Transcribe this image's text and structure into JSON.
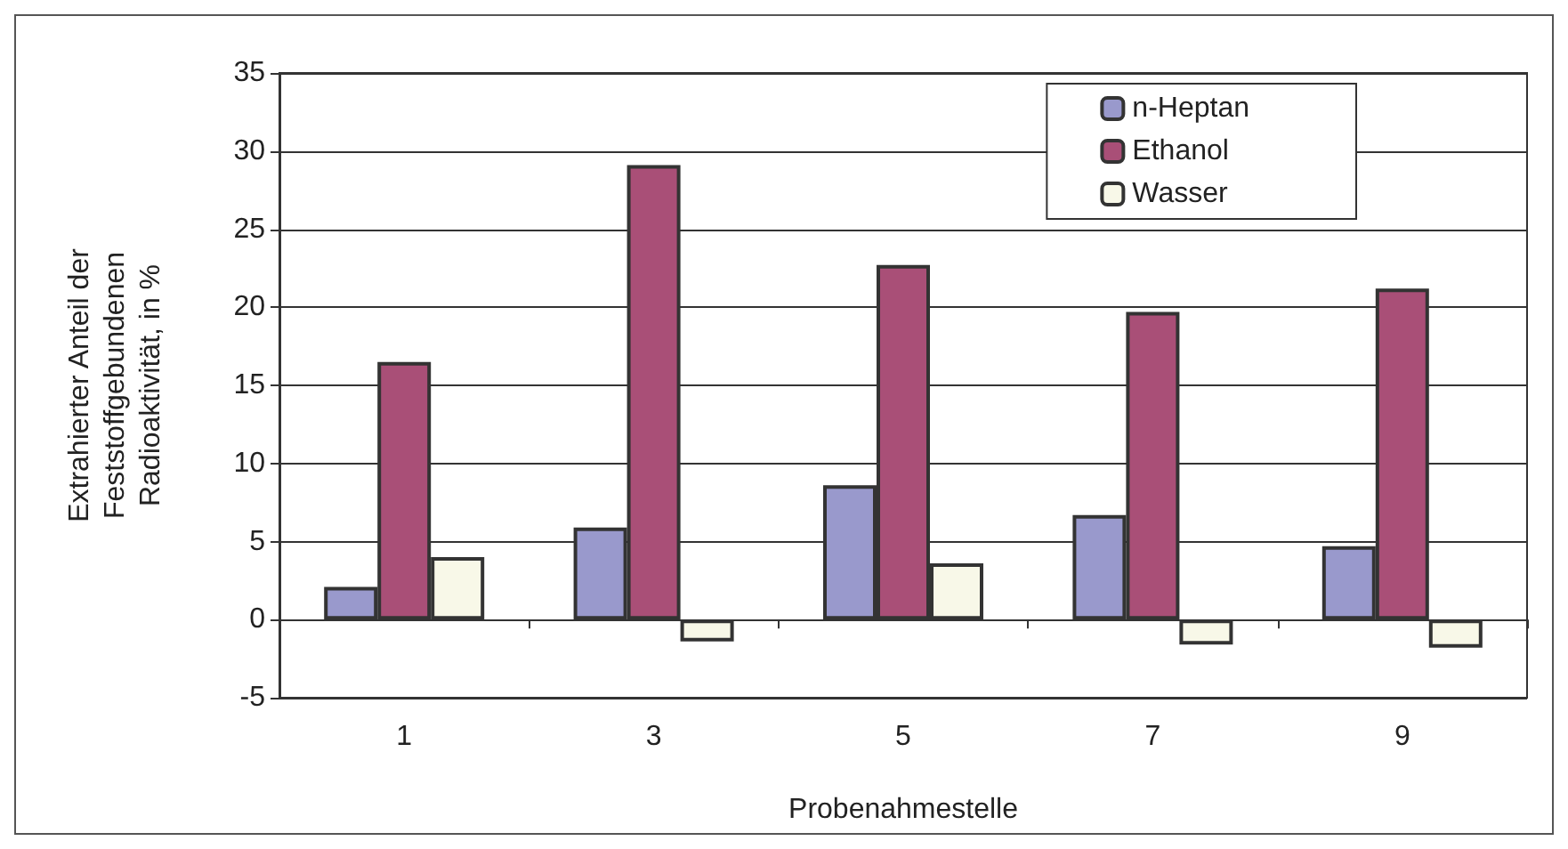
{
  "chart_data": {
    "type": "bar",
    "xlabel": "Probenahmestelle",
    "ylabel": "Extrahierter Anteil der\nFeststoffgebundenen\nRadioaktivität, in %",
    "categories": [
      "1",
      "3",
      "5",
      "7",
      "9"
    ],
    "series": [
      {
        "name": "n-Heptan",
        "color": "#9999cc",
        "values": [
          2.1,
          5.9,
          8.6,
          6.7,
          4.7
        ]
      },
      {
        "name": "Ethanol",
        "color": "#a94f77",
        "values": [
          16.5,
          29.1,
          22.7,
          19.7,
          21.2
        ]
      },
      {
        "name": "Wasser",
        "color": "#f8f8e8",
        "values": [
          4.0,
          -1.4,
          3.6,
          -1.6,
          -1.8
        ]
      }
    ],
    "ylim": [
      -5,
      35
    ],
    "yticks": [
      -5,
      0,
      5,
      10,
      15,
      20,
      25,
      30,
      35
    ],
    "grid": "y",
    "legend": "top right"
  }
}
